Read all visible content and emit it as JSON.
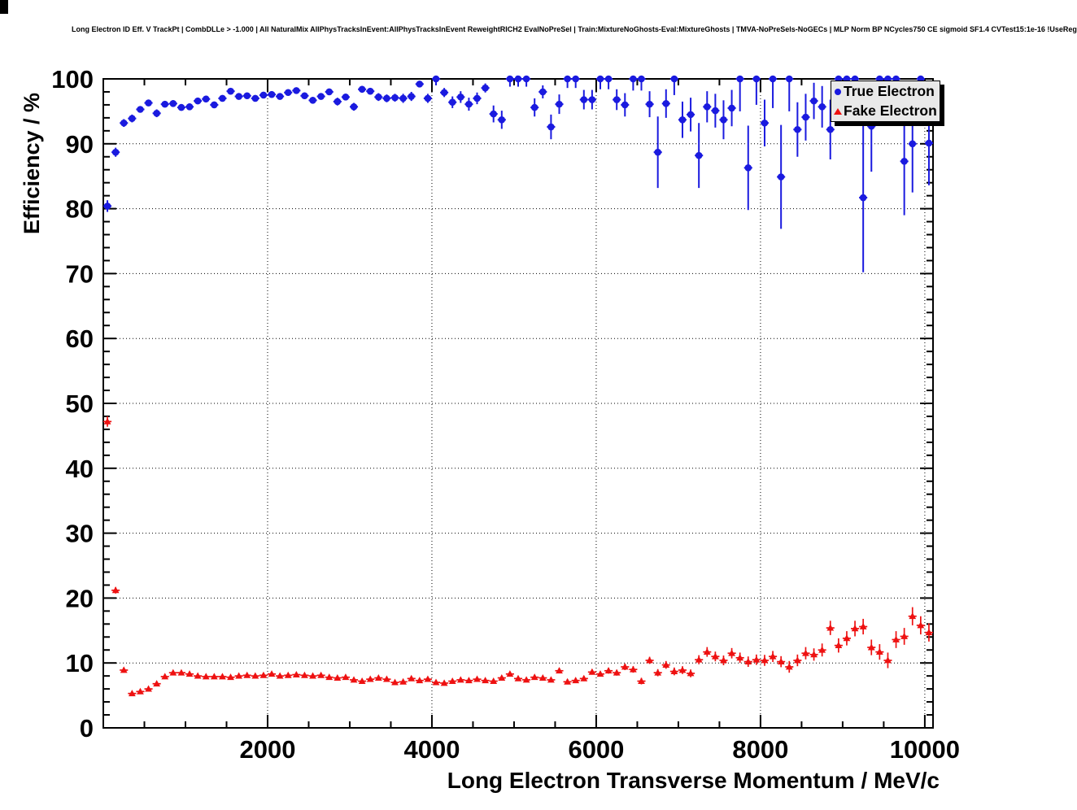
{
  "header": {
    "title": "Long Electron ID Eff. V TrackPt | CombDLLe > -1.000 | All NaturalMix AllPhysTracksInEvent:AllPhysTracksInEvent ReweightRICH2 EvalNoPreSel | Train:MixtureNoGhosts-Eval:MixtureGhosts | TMVA-NoPreSels-NoGECs | MLP Norm BP NCycles750 CE sigmoid SF1.4 CVTest15:1e-16 !UseReg"
  },
  "chart_data": {
    "type": "scatter",
    "title": "Long Electron ID Eff. V TrackPt | CombDLLe > -1.000 | All NaturalMix AllPhysTracksInEvent:AllPhysTracksInEvent ReweightRICH2 EvalNoPreSel | Train:MixtureNoGhosts-Eval:MixtureGhosts | TMVA-NoPreSels-NoGECs | MLP Norm BP NCycles750 CE sigmoid SF1.4 CVTest15:1e-16 !UseReg",
    "xlabel": "Long Electron Transverse Momentum / MeV/c",
    "ylabel": "Efficiency / %",
    "xlim": [
      0,
      10100
    ],
    "ylim": [
      0,
      100
    ],
    "x_major_ticks": [
      2000,
      4000,
      6000,
      8000,
      10000
    ],
    "x_minor_step": 500,
    "y_major_ticks": [
      0,
      10,
      20,
      30,
      40,
      50,
      60,
      70,
      80,
      90,
      100
    ],
    "y_minor_step": 2,
    "grid": "dotted-at-major-ticks",
    "bin_half_width": 50,
    "legend": {
      "position": "top-right",
      "entries": [
        {
          "label": "True Electron",
          "marker": "circle",
          "color": "#1a1adf"
        },
        {
          "label": "Fake Electron",
          "marker": "triangle",
          "color": "#ee1111"
        }
      ]
    },
    "series": [
      {
        "name": "True Electron",
        "marker": "circle",
        "color": "#1a1adf",
        "points_format": [
          "pt_mev",
          "efficiency_pct",
          "err_pct"
        ],
        "points": [
          [
            50,
            80.4,
            0.9
          ],
          [
            150,
            88.7,
            0.7
          ],
          [
            250,
            93.2,
            0.6
          ],
          [
            350,
            93.9,
            0.6
          ],
          [
            450,
            95.3,
            0.5
          ],
          [
            550,
            96.3,
            0.5
          ],
          [
            650,
            94.7,
            0.6
          ],
          [
            750,
            96.1,
            0.5
          ],
          [
            850,
            96.2,
            0.5
          ],
          [
            950,
            95.6,
            0.5
          ],
          [
            1050,
            95.7,
            0.5
          ],
          [
            1150,
            96.6,
            0.5
          ],
          [
            1250,
            96.9,
            0.5
          ],
          [
            1350,
            96.0,
            0.5
          ],
          [
            1450,
            97.0,
            0.5
          ],
          [
            1550,
            98.1,
            0.4
          ],
          [
            1650,
            97.3,
            0.4
          ],
          [
            1750,
            97.4,
            0.4
          ],
          [
            1850,
            97.0,
            0.5
          ],
          [
            1950,
            97.5,
            0.4
          ],
          [
            2050,
            97.6,
            0.4
          ],
          [
            2150,
            97.3,
            0.5
          ],
          [
            2250,
            97.9,
            0.4
          ],
          [
            2350,
            98.2,
            0.4
          ],
          [
            2450,
            97.4,
            0.5
          ],
          [
            2550,
            96.7,
            0.5
          ],
          [
            2650,
            97.3,
            0.5
          ],
          [
            2750,
            98.0,
            0.5
          ],
          [
            2850,
            96.5,
            0.6
          ],
          [
            2950,
            97.2,
            0.5
          ],
          [
            3050,
            95.7,
            0.6
          ],
          [
            3150,
            98.4,
            0.5
          ],
          [
            3250,
            98.1,
            0.5
          ],
          [
            3350,
            97.2,
            0.6
          ],
          [
            3450,
            97.0,
            0.6
          ],
          [
            3550,
            97.1,
            0.6
          ],
          [
            3650,
            97.0,
            0.7
          ],
          [
            3750,
            97.3,
            0.7
          ],
          [
            3850,
            99.2,
            0.5
          ],
          [
            3950,
            97.0,
            0.7
          ],
          [
            4050,
            100,
            1.0
          ],
          [
            4150,
            97.9,
            0.7
          ],
          [
            4250,
            96.4,
            0.9
          ],
          [
            4350,
            97.2,
            0.9
          ],
          [
            4450,
            96.1,
            1.0
          ],
          [
            4550,
            97.0,
            0.9
          ],
          [
            4650,
            98.6,
            0.7
          ],
          [
            4750,
            94.6,
            1.3
          ],
          [
            4850,
            93.7,
            1.4
          ],
          [
            4950,
            100,
            1.2
          ],
          [
            5050,
            100,
            1.2
          ],
          [
            5150,
            100,
            1.2
          ],
          [
            5250,
            95.6,
            1.4
          ],
          [
            5350,
            98.0,
            1.0
          ],
          [
            5450,
            92.6,
            1.9
          ],
          [
            5550,
            96.1,
            1.5
          ],
          [
            5650,
            100,
            1.4
          ],
          [
            5750,
            100,
            1.4
          ],
          [
            5850,
            96.8,
            1.5
          ],
          [
            5950,
            96.8,
            1.5
          ],
          [
            6050,
            100,
            1.6
          ],
          [
            6150,
            100,
            1.6
          ],
          [
            6250,
            96.8,
            1.6
          ],
          [
            6350,
            96.0,
            1.8
          ],
          [
            6450,
            100,
            1.8
          ],
          [
            6550,
            100,
            1.8
          ],
          [
            6650,
            96.1,
            2.0
          ],
          [
            6750,
            88.7,
            5.5
          ],
          [
            6850,
            96.2,
            2.2
          ],
          [
            6950,
            100,
            2.5
          ],
          [
            7050,
            93.7,
            2.8
          ],
          [
            7150,
            94.5,
            2.6
          ],
          [
            7250,
            88.2,
            5.0
          ],
          [
            7350,
            95.7,
            2.4
          ],
          [
            7450,
            95.1,
            2.6
          ],
          [
            7550,
            93.7,
            3.0
          ],
          [
            7650,
            95.5,
            2.8
          ],
          [
            7750,
            100,
            5.0
          ],
          [
            7850,
            86.3,
            6.5
          ],
          [
            7950,
            100,
            4.0
          ],
          [
            8050,
            93.2,
            3.6
          ],
          [
            8150,
            100,
            4.5
          ],
          [
            8250,
            84.9,
            8.0
          ],
          [
            8350,
            100,
            5.0
          ],
          [
            8450,
            92.2,
            4.2
          ],
          [
            8550,
            94.1,
            3.6
          ],
          [
            8650,
            96.6,
            2.8
          ],
          [
            8750,
            95.7,
            3.2
          ],
          [
            8850,
            92.2,
            4.6
          ],
          [
            8950,
            100,
            4.5
          ],
          [
            9050,
            100,
            4.5
          ],
          [
            9150,
            100,
            5.0
          ],
          [
            9250,
            81.7,
            11.5
          ],
          [
            9350,
            92.7,
            7.0
          ],
          [
            9450,
            100,
            5.0
          ],
          [
            9550,
            100,
            5.5
          ],
          [
            9650,
            100,
            5.5
          ],
          [
            9750,
            87.3,
            8.3
          ],
          [
            9850,
            90.0,
            7.5
          ],
          [
            9950,
            100,
            6.0
          ],
          [
            10050,
            90.1,
            6.5
          ]
        ]
      },
      {
        "name": "Fake Electron",
        "marker": "triangle",
        "color": "#ee1111",
        "points_format": [
          "pt_mev",
          "efficiency_pct",
          "err_pct"
        ],
        "points": [
          [
            50,
            47.2,
            0.8
          ],
          [
            150,
            21.2,
            0.5
          ],
          [
            250,
            8.9,
            0.4
          ],
          [
            350,
            5.3,
            0.25
          ],
          [
            450,
            5.6,
            0.25
          ],
          [
            550,
            6.0,
            0.25
          ],
          [
            650,
            6.8,
            0.3
          ],
          [
            750,
            7.9,
            0.3
          ],
          [
            850,
            8.5,
            0.3
          ],
          [
            950,
            8.5,
            0.3
          ],
          [
            1050,
            8.3,
            0.3
          ],
          [
            1150,
            8.0,
            0.3
          ],
          [
            1250,
            7.9,
            0.3
          ],
          [
            1350,
            7.9,
            0.3
          ],
          [
            1450,
            7.9,
            0.3
          ],
          [
            1550,
            7.8,
            0.3
          ],
          [
            1650,
            8.0,
            0.3
          ],
          [
            1750,
            8.1,
            0.3
          ],
          [
            1850,
            8.0,
            0.3
          ],
          [
            1950,
            8.1,
            0.3
          ],
          [
            2050,
            8.3,
            0.3
          ],
          [
            2150,
            8.0,
            0.3
          ],
          [
            2250,
            8.1,
            0.3
          ],
          [
            2350,
            8.2,
            0.3
          ],
          [
            2450,
            8.1,
            0.3
          ],
          [
            2550,
            8.0,
            0.3
          ],
          [
            2650,
            8.1,
            0.3
          ],
          [
            2750,
            7.8,
            0.3
          ],
          [
            2850,
            7.7,
            0.3
          ],
          [
            2950,
            7.8,
            0.3
          ],
          [
            3050,
            7.4,
            0.3
          ],
          [
            3150,
            7.2,
            0.3
          ],
          [
            3250,
            7.5,
            0.3
          ],
          [
            3350,
            7.7,
            0.3
          ],
          [
            3450,
            7.5,
            0.3
          ],
          [
            3550,
            7.0,
            0.3
          ],
          [
            3650,
            7.1,
            0.3
          ],
          [
            3750,
            7.6,
            0.3
          ],
          [
            3850,
            7.3,
            0.3
          ],
          [
            3950,
            7.5,
            0.3
          ],
          [
            4050,
            7.0,
            0.3
          ],
          [
            4150,
            6.9,
            0.3
          ],
          [
            4250,
            7.2,
            0.3
          ],
          [
            4350,
            7.4,
            0.3
          ],
          [
            4450,
            7.3,
            0.3
          ],
          [
            4550,
            7.5,
            0.3
          ],
          [
            4650,
            7.3,
            0.3
          ],
          [
            4750,
            7.2,
            0.3
          ],
          [
            4850,
            7.7,
            0.3
          ],
          [
            4950,
            8.3,
            0.35
          ],
          [
            5050,
            7.6,
            0.35
          ],
          [
            5150,
            7.4,
            0.35
          ],
          [
            5250,
            7.8,
            0.35
          ],
          [
            5350,
            7.7,
            0.35
          ],
          [
            5450,
            7.4,
            0.35
          ],
          [
            5550,
            8.8,
            0.4
          ],
          [
            5650,
            7.1,
            0.4
          ],
          [
            5750,
            7.3,
            0.4
          ],
          [
            5850,
            7.6,
            0.4
          ],
          [
            5950,
            8.6,
            0.4
          ],
          [
            6050,
            8.3,
            0.4
          ],
          [
            6150,
            8.8,
            0.45
          ],
          [
            6250,
            8.5,
            0.45
          ],
          [
            6350,
            9.4,
            0.5
          ],
          [
            6450,
            9.0,
            0.5
          ],
          [
            6550,
            7.2,
            0.5
          ],
          [
            6650,
            10.4,
            0.55
          ],
          [
            6750,
            8.5,
            0.55
          ],
          [
            6850,
            9.7,
            0.6
          ],
          [
            6950,
            8.7,
            0.6
          ],
          [
            7050,
            8.9,
            0.6
          ],
          [
            7150,
            8.4,
            0.6
          ],
          [
            7250,
            10.5,
            0.7
          ],
          [
            7350,
            11.7,
            0.75
          ],
          [
            7450,
            11.0,
            0.75
          ],
          [
            7550,
            10.4,
            0.75
          ],
          [
            7650,
            11.5,
            0.8
          ],
          [
            7750,
            10.8,
            0.8
          ],
          [
            7850,
            10.2,
            0.8
          ],
          [
            7950,
            10.5,
            0.8
          ],
          [
            8050,
            10.4,
            0.85
          ],
          [
            8150,
            11.0,
            0.85
          ],
          [
            8250,
            10.2,
            0.85
          ],
          [
            8350,
            9.4,
            0.9
          ],
          [
            8450,
            10.4,
            0.9
          ],
          [
            8550,
            11.5,
            0.95
          ],
          [
            8650,
            11.3,
            0.95
          ],
          [
            8750,
            12.0,
            1.0
          ],
          [
            8850,
            15.4,
            1.1
          ],
          [
            8950,
            12.7,
            1.1
          ],
          [
            9050,
            13.8,
            1.1
          ],
          [
            9150,
            15.3,
            1.2
          ],
          [
            9250,
            15.6,
            1.2
          ],
          [
            9350,
            12.4,
            1.2
          ],
          [
            9450,
            11.7,
            1.2
          ],
          [
            9550,
            10.4,
            1.2
          ],
          [
            9650,
            13.6,
            1.3
          ],
          [
            9750,
            14.1,
            1.3
          ],
          [
            9850,
            17.2,
            1.4
          ],
          [
            9950,
            15.8,
            1.4
          ],
          [
            10050,
            14.7,
            1.4
          ]
        ]
      }
    ]
  }
}
